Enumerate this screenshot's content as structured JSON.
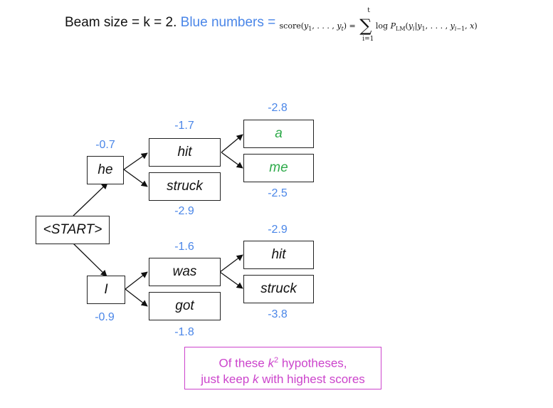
{
  "header": {
    "beam_label": "Beam size = k = 2.",
    "blue_label": "Blue numbers = ",
    "formula_score": "score(y",
    "formula_eq": "log P",
    "sum_upper": "t",
    "sum_lower": "i=1"
  },
  "nodes": {
    "start": "<START>",
    "he": "he",
    "i": "I",
    "hit1": "hit",
    "struck1": "struck",
    "was": "was",
    "got": "got",
    "a": "a",
    "me": "me",
    "hit2": "hit",
    "struck2": "struck"
  },
  "scores": {
    "he": "-0.7",
    "i": "-0.9",
    "hit1": "-1.7",
    "struck1": "-2.9",
    "was": "-1.6",
    "got": "-1.8",
    "a": "-2.8",
    "me": "-2.5",
    "hit2": "-2.9",
    "struck2": "-3.8"
  },
  "note": {
    "line1_pre": "Of these ",
    "line1_k": "k",
    "line1_sup": "2",
    "line1_post": " hypotheses,",
    "line2_pre": "just keep ",
    "line2_k": "k",
    "line2_post": " with highest scores"
  },
  "colors": {
    "score": "#4a86e8",
    "green_word": "#2eaa4a",
    "note": "#cc44cc"
  }
}
